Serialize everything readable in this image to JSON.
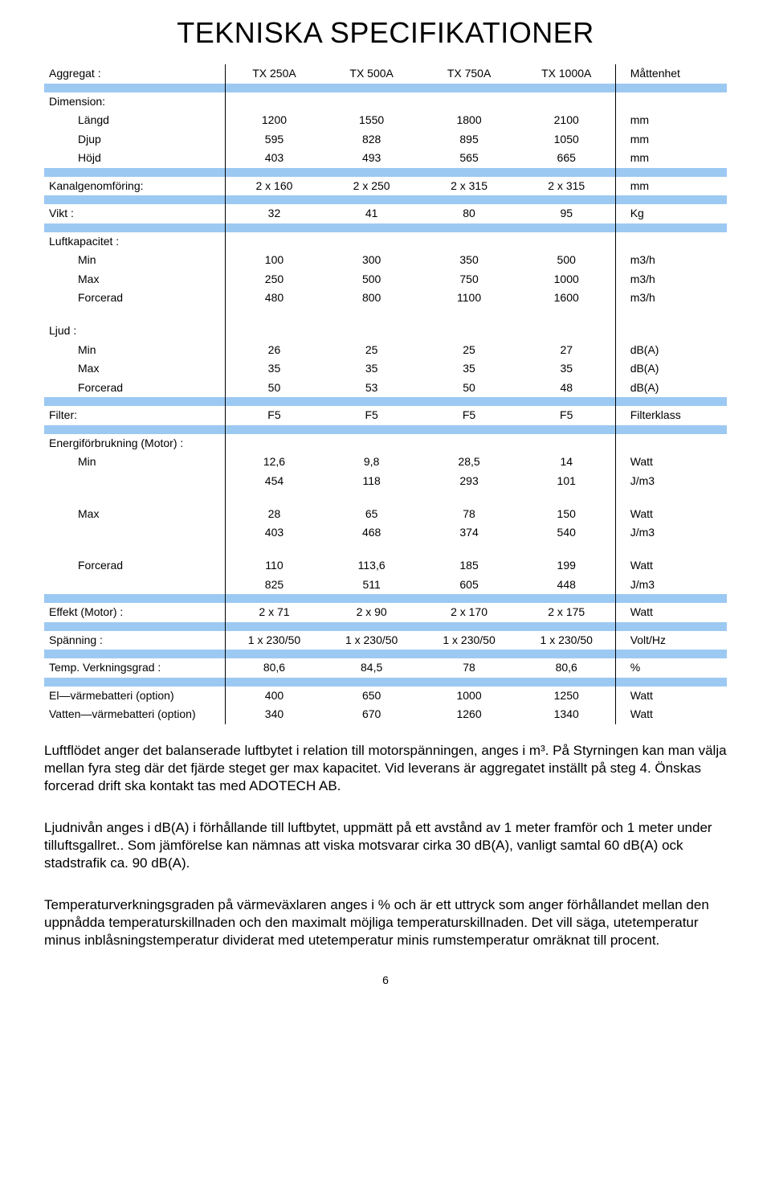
{
  "title": "TEKNISKA SPECIFIKATIONER",
  "band_color": "#9cc9f2",
  "header": {
    "label": "Aggregat :",
    "cols": [
      "TX 250A",
      "TX 500A",
      "TX 750A",
      "TX 1000A"
    ],
    "unit": "Måttenhet"
  },
  "sections": [
    {
      "label": "Dimension:",
      "rows": [
        {
          "label": "Längd",
          "vals": [
            "1200",
            "1550",
            "1800",
            "2100"
          ],
          "unit": "mm"
        },
        {
          "label": "Djup",
          "vals": [
            "595",
            "828",
            "895",
            "1050"
          ],
          "unit": "mm"
        },
        {
          "label": "Höjd",
          "vals": [
            "403",
            "493",
            "565",
            "665"
          ],
          "unit": "mm"
        }
      ]
    },
    {
      "rows": [
        {
          "label": "Kanalgenomföring:",
          "top": true,
          "vals": [
            "2 x 160",
            "2 x 250",
            "2 x 315",
            "2 x 315"
          ],
          "unit": "mm"
        }
      ]
    },
    {
      "rows": [
        {
          "label": "Vikt :",
          "top": true,
          "vals": [
            "32",
            "41",
            "80",
            "95"
          ],
          "unit": "Kg"
        }
      ]
    },
    {
      "label": "Luftkapacitet :",
      "rows": [
        {
          "label": "Min",
          "vals": [
            "100",
            "300",
            "350",
            "500"
          ],
          "unit": "m3/h"
        },
        {
          "label": "Max",
          "vals": [
            "250",
            "500",
            "750",
            "1000"
          ],
          "unit": "m3/h"
        },
        {
          "label": "Forcerad",
          "vals": [
            "480",
            "800",
            "1100",
            "1600"
          ],
          "unit": "m3/h"
        }
      ]
    },
    {
      "label": "Ljud :",
      "noband": true,
      "rows": [
        {
          "label": "Min",
          "vals": [
            "26",
            "25",
            "25",
            "27"
          ],
          "unit": "dB(A)"
        },
        {
          "label": "Max",
          "vals": [
            "35",
            "35",
            "35",
            "35"
          ],
          "unit": "dB(A)"
        },
        {
          "label": "Forcerad",
          "vals": [
            "50",
            "53",
            "50",
            "48"
          ],
          "unit": "dB(A)"
        }
      ]
    },
    {
      "rows": [
        {
          "label": "Filter:",
          "top": true,
          "vals": [
            "F5",
            "F5",
            "F5",
            "F5"
          ],
          "unit": "Filterklass"
        }
      ]
    },
    {
      "label": "Energiförbrukning (Motor) :",
      "rows": [
        {
          "label": "Min",
          "vals": [
            "12,6",
            "9,8",
            "28,5",
            "14"
          ],
          "unit": "Watt"
        },
        {
          "label": "",
          "vals": [
            "454",
            "118",
            "293",
            "101"
          ],
          "unit": "J/m3"
        }
      ]
    },
    {
      "noband": true,
      "rows": [
        {
          "label": "Max",
          "indent": true,
          "vals": [
            "28",
            "65",
            "78",
            "150"
          ],
          "unit": "Watt"
        },
        {
          "label": "",
          "vals": [
            "403",
            "468",
            "374",
            "540"
          ],
          "unit": "J/m3"
        }
      ]
    },
    {
      "noband": true,
      "rows": [
        {
          "label": "Forcerad",
          "indent": true,
          "vals": [
            "110",
            "113,6",
            "185",
            "199"
          ],
          "unit": "Watt"
        },
        {
          "label": "",
          "vals": [
            "825",
            "511",
            "605",
            "448"
          ],
          "unit": "J/m3"
        }
      ]
    },
    {
      "rows": [
        {
          "label": "Effekt (Motor) :",
          "top": true,
          "vals": [
            "2 x 71",
            "2 x 90",
            "2 x 170",
            "2 x 175"
          ],
          "unit": "Watt"
        }
      ]
    },
    {
      "rows": [
        {
          "label": "Spänning :",
          "top": true,
          "vals": [
            "1 x 230/50",
            "1 x 230/50",
            "1 x 230/50",
            "1 x 230/50"
          ],
          "unit": "Volt/Hz"
        }
      ]
    },
    {
      "rows": [
        {
          "label": "Temp. Verkningsgrad :",
          "top": true,
          "vals": [
            "80,6",
            "84,5",
            "78",
            "80,6"
          ],
          "unit": "%"
        }
      ]
    },
    {
      "rows": [
        {
          "label": "El—värmebatteri (option)",
          "top": true,
          "vals": [
            "400",
            "650",
            "1000",
            "1250"
          ],
          "unit": "Watt"
        },
        {
          "label": "Vatten—värmebatteri (option)",
          "top": true,
          "vals": [
            "340",
            "670",
            "1260",
            "1340"
          ],
          "unit": "Watt"
        }
      ]
    }
  ],
  "paragraphs": [
    "Luftflödet anger det balanserade luftbytet i relation till motorspänningen, anges i m³. På Styrningen kan man välja mellan fyra steg där det fjärde steget ger max kapacitet. Vid leverans är aggregatet inställt på steg 4. Önskas forcerad drift ska kontakt tas med ADOTECH AB.",
    "Ljudnivån anges i dB(A) i förhållande till luftbytet, uppmätt på ett avstånd av 1 meter framför och 1 meter under tilluftsgallret.. Som jämförelse kan nämnas att viska motsvarar cirka 30 dB(A), vanligt samtal 60 dB(A) ock stadstrafik ca. 90 dB(A).",
    "Temperaturverkningsgraden på värmeväxlaren anges i % och är ett uttryck som anger förhållandet mellan den uppnådda temperaturskillnaden och den maximalt möjliga temperaturskillnaden. Det vill säga, utetemperatur minus inblåsningstemperatur dividerat med utetemperatur minis rumstemperatur omräknat till procent."
  ],
  "page_number": "6"
}
